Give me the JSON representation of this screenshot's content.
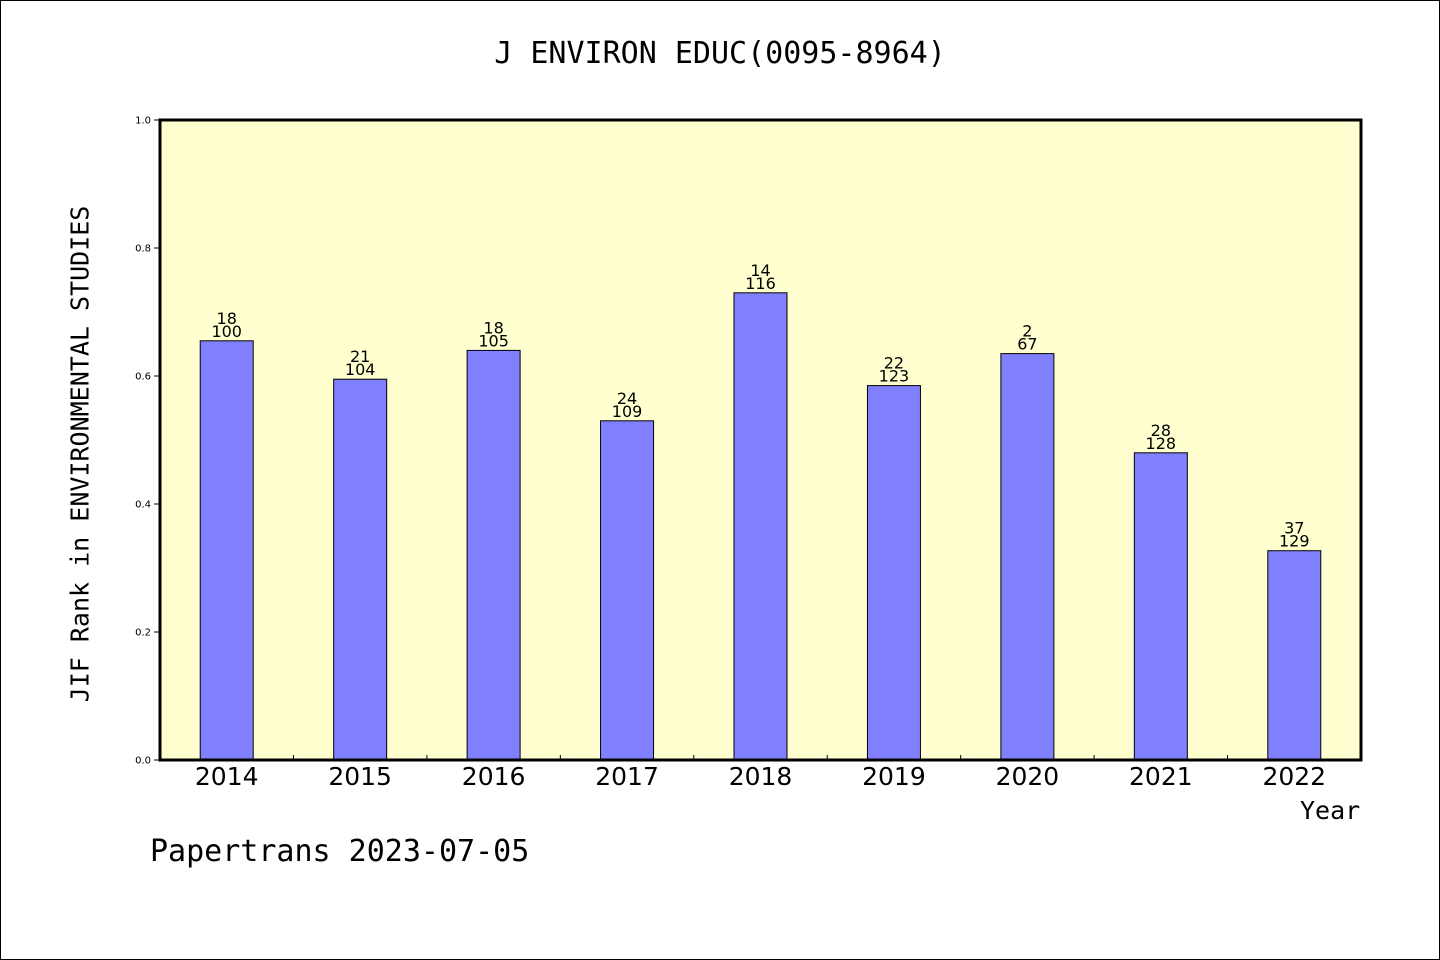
{
  "chart_data": {
    "type": "bar",
    "title": "J ENVIRON EDUC(0095-8964)",
    "xlabel": "Year",
    "ylabel": "JIF Rank in ENVIRONMENTAL STUDIES",
    "ylim": [
      0,
      1.0
    ],
    "yticks": [
      "0.0",
      "0.2",
      "0.4",
      "0.6",
      "0.8",
      "1.0"
    ],
    "categories": [
      "2014",
      "2015",
      "2016",
      "2017",
      "2018",
      "2019",
      "2020",
      "2021",
      "2022"
    ],
    "values": [
      0.655,
      0.595,
      0.64,
      0.53,
      0.73,
      0.585,
      0.635,
      0.48,
      0.327
    ],
    "ranks": [
      "18",
      "21",
      "18",
      "24",
      "14",
      "22",
      "2",
      "28",
      "37"
    ],
    "totals": [
      "100",
      "104",
      "105",
      "109",
      "116",
      "123",
      "67",
      "128",
      "129"
    ],
    "grid": false,
    "legend": "none"
  },
  "footer": "Papertrans 2023-07-05",
  "colors": {
    "plot_background": "#ffffd0",
    "bar_fill": "#8080ff",
    "bar_stroke": "#000000"
  }
}
